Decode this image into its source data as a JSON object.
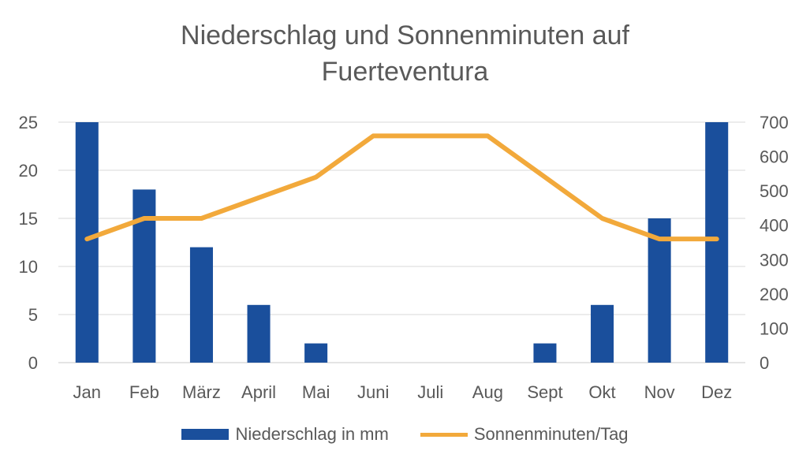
{
  "chart_data": {
    "type": "bar+line",
    "title": "Niederschlag und Sonnenminuten auf Fuerteventura",
    "title_lines": [
      "Niederschlag und Sonnenminuten auf",
      "Fuerteventura"
    ],
    "categories": [
      "Jan",
      "Feb",
      "März",
      "April",
      "Mai",
      "Juni",
      "Juli",
      "Aug",
      "Sept",
      "Okt",
      "Nov",
      "Dez"
    ],
    "series": [
      {
        "name": "Niederschlag in mm",
        "type": "bar",
        "axis": "left",
        "color": "#1a4f9c",
        "values": [
          25,
          18,
          12,
          6,
          2,
          0,
          0,
          0,
          2,
          6,
          15,
          25
        ]
      },
      {
        "name": "Sonnenminuten/Tag",
        "type": "line",
        "axis": "right",
        "color": "#f2a93b",
        "values": [
          360,
          420,
          420,
          480,
          540,
          660,
          660,
          660,
          540,
          420,
          360,
          360
        ]
      }
    ],
    "y_left": {
      "ylim": [
        0,
        25
      ],
      "ticks": [
        0,
        5,
        10,
        15,
        20,
        25
      ]
    },
    "y_right": {
      "ylim": [
        0,
        700
      ],
      "ticks": [
        0,
        100,
        200,
        300,
        400,
        500,
        600,
        700
      ]
    },
    "grid": true,
    "legend": "bottom"
  }
}
